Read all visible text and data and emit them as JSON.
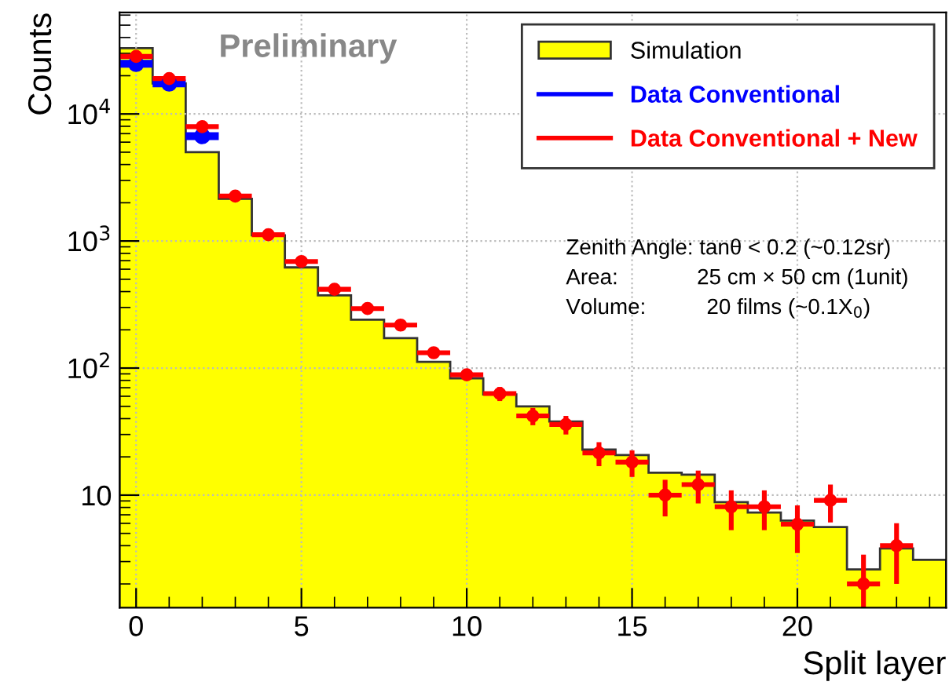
{
  "chart_data": {
    "type": "histogram",
    "xlabel": "Split layer",
    "ylabel": "Counts",
    "log": "y",
    "grid": true,
    "legend": "top right",
    "bins": [
      -0.5,
      0.5,
      1.5,
      2.5,
      3.5,
      4.5,
      5.5,
      6.5,
      7.5,
      8.5,
      9.5,
      10.5,
      11.5,
      12.5,
      13.5,
      14.5,
      15.5,
      16.5,
      17.5,
      18.5,
      19.5,
      20.5,
      21.5,
      22.5,
      23.5,
      24.5
    ],
    "series": [
      {
        "name": "Simulation",
        "color": "#ffff00",
        "values": [
          33000,
          17400,
          5000,
          2150,
          1110,
          620,
          374,
          240,
          172,
          112,
          83,
          62,
          50,
          38,
          22.8,
          20.7,
          15,
          14.5,
          8.8,
          7.3,
          6.3,
          5.6,
          2.6,
          3.8,
          3.1
        ]
      },
      {
        "name": "Data Conventional",
        "type": "scatter",
        "color": "#0000ff",
        "x": [
          0,
          1,
          2
        ],
        "values": [
          24800,
          17400,
          6700
        ],
        "xerrors": [
          0.5,
          0.5,
          0.5
        ]
      },
      {
        "name": "Data Conventional + New",
        "type": "scatter",
        "color": "#ff0000",
        "x": [
          0,
          1,
          2,
          3,
          4,
          5,
          6,
          7,
          8,
          9,
          10,
          11,
          12,
          13,
          14,
          15,
          16,
          17,
          18,
          19,
          20,
          21,
          22,
          23
        ],
        "values": [
          28400,
          19000,
          7950,
          2260,
          1120,
          690,
          417,
          294,
          218,
          132,
          88.5,
          63,
          42,
          36,
          21.5,
          18.2,
          10,
          12.1,
          8.1,
          8.1,
          5.9,
          9.1,
          2.0,
          4.0
        ],
        "xerrors": [
          0.5,
          0.5,
          0.5,
          0.5,
          0.5,
          0.5,
          0.5,
          0.5,
          0.5,
          0.5,
          0.5,
          0.5,
          0.5,
          0.5,
          0.5,
          0.5,
          0.5,
          0.5,
          0.5,
          0.5,
          0.5,
          0.5,
          0.5,
          0.5
        ],
        "errors": [
          null,
          null,
          null,
          null,
          null,
          null,
          null,
          null,
          null,
          null,
          null,
          8,
          6.5,
          6,
          4.6,
          4.3,
          3.2,
          3.5,
          2.8,
          2.8,
          2.4,
          3,
          [
            1.3,
            3.4
          ],
          2
        ]
      }
    ],
    "xlim": [
      -0.5,
      24.5
    ],
    "xticks": [
      0,
      5,
      10,
      15,
      20
    ],
    "ylim": [
      1.3,
      63000
    ],
    "yticks": [
      10,
      {
        "value": 100,
        "label": "10$^{2}$"
      },
      {
        "value": 1000,
        "label": "10$^{3}$"
      },
      {
        "value": 10000,
        "label": "10$^{4}$"
      }
    ],
    "annotations": [
      "Preliminary",
      "Zenith Angle: tanθ < 0.2 (~0.12sr)",
      "Area:             25 cm × 50 cm (1unit)",
      "Volume:          20 films (~0.1X$_{0}$)"
    ]
  }
}
